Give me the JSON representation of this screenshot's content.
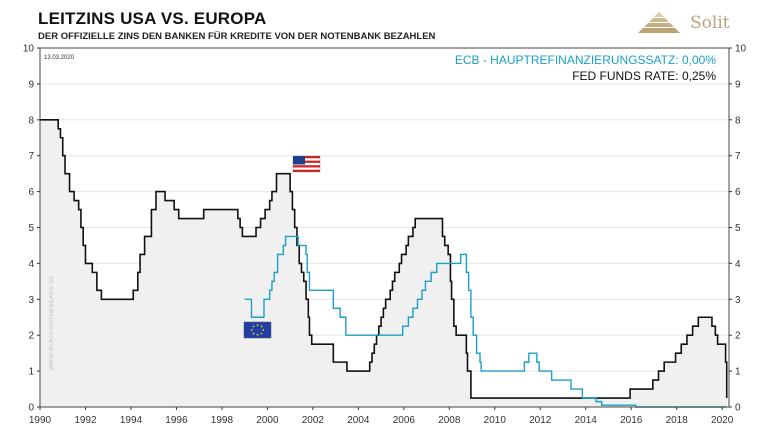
{
  "header": {
    "title": "LEITZINS USA VS. EUROPA",
    "subtitle": "DER OFFIZIELLE ZINS DEN BANKEN FÜR KREDITE VON DER NOTENBANK BEZAHLEN"
  },
  "logo": {
    "text": "Solit",
    "icon": "pyramid-icon",
    "color": "#b8a27a"
  },
  "watermark": "WWW.BLACKONTHEBEARS.DE",
  "colors": {
    "fed": "#111111",
    "ecb": "#1aa0c8",
    "fed_fill": "#f0f0f0",
    "grid": "#e6e6e6"
  },
  "flags": {
    "usa": "us-flag-icon",
    "eu": "eu-flag-icon"
  },
  "chart_data": {
    "type": "line",
    "date_label": "13.03.2020",
    "xlim": [
      1990,
      2020.3
    ],
    "ylim": [
      0,
      10
    ],
    "x_ticks": [
      "1990",
      "1992",
      "1994",
      "1996",
      "1998",
      "2000",
      "2002",
      "2004",
      "2006",
      "2008",
      "2010",
      "2012",
      "2014",
      "2016",
      "2018",
      "2020"
    ],
    "y_ticks": [
      "0",
      "1",
      "2",
      "3",
      "4",
      "5",
      "6",
      "7",
      "8",
      "9",
      "10"
    ],
    "grid": "horizontal",
    "legend_position": "top-right",
    "legend": [
      {
        "label": "ECB - HAUPTREFINANZIERUNGSSATZ: 0,00%",
        "series": "ecb"
      },
      {
        "label": "FED FUNDS RATE: 0,25%",
        "series": "fed"
      }
    ],
    "series": [
      {
        "id": "fed",
        "style": "step",
        "filled": true,
        "points": [
          [
            1990.0,
            8.0
          ],
          [
            1990.8,
            7.75
          ],
          [
            1990.9,
            7.5
          ],
          [
            1991.0,
            7.0
          ],
          [
            1991.1,
            6.5
          ],
          [
            1991.3,
            6.0
          ],
          [
            1991.5,
            5.75
          ],
          [
            1991.7,
            5.5
          ],
          [
            1991.8,
            5.0
          ],
          [
            1991.9,
            4.5
          ],
          [
            1992.0,
            4.0
          ],
          [
            1992.3,
            3.75
          ],
          [
            1992.5,
            3.25
          ],
          [
            1992.7,
            3.0
          ],
          [
            1994.1,
            3.25
          ],
          [
            1994.3,
            3.75
          ],
          [
            1994.4,
            4.25
          ],
          [
            1994.6,
            4.75
          ],
          [
            1994.9,
            5.5
          ],
          [
            1995.1,
            6.0
          ],
          [
            1995.5,
            5.75
          ],
          [
            1995.9,
            5.5
          ],
          [
            1996.1,
            5.25
          ],
          [
            1997.2,
            5.5
          ],
          [
            1998.7,
            5.25
          ],
          [
            1998.8,
            5.0
          ],
          [
            1998.9,
            4.75
          ],
          [
            1999.5,
            5.0
          ],
          [
            1999.7,
            5.25
          ],
          [
            1999.9,
            5.5
          ],
          [
            2000.1,
            5.75
          ],
          [
            2000.2,
            6.0
          ],
          [
            2000.4,
            6.5
          ],
          [
            2001.0,
            6.0
          ],
          [
            2001.1,
            5.5
          ],
          [
            2001.2,
            5.0
          ],
          [
            2001.3,
            4.5
          ],
          [
            2001.4,
            4.0
          ],
          [
            2001.5,
            3.75
          ],
          [
            2001.6,
            3.5
          ],
          [
            2001.7,
            3.0
          ],
          [
            2001.8,
            2.5
          ],
          [
            2001.85,
            2.0
          ],
          [
            2001.95,
            1.75
          ],
          [
            2002.9,
            1.25
          ],
          [
            2003.5,
            1.0
          ],
          [
            2004.5,
            1.25
          ],
          [
            2004.6,
            1.5
          ],
          [
            2004.7,
            1.75
          ],
          [
            2004.8,
            2.0
          ],
          [
            2004.9,
            2.25
          ],
          [
            2005.0,
            2.5
          ],
          [
            2005.1,
            2.75
          ],
          [
            2005.2,
            3.0
          ],
          [
            2005.4,
            3.25
          ],
          [
            2005.5,
            3.5
          ],
          [
            2005.6,
            3.75
          ],
          [
            2005.8,
            4.0
          ],
          [
            2005.9,
            4.25
          ],
          [
            2006.1,
            4.5
          ],
          [
            2006.2,
            4.75
          ],
          [
            2006.4,
            5.0
          ],
          [
            2006.5,
            5.25
          ],
          [
            2007.7,
            4.75
          ],
          [
            2007.8,
            4.5
          ],
          [
            2007.95,
            4.25
          ],
          [
            2008.05,
            3.5
          ],
          [
            2008.1,
            3.0
          ],
          [
            2008.2,
            2.25
          ],
          [
            2008.3,
            2.0
          ],
          [
            2008.75,
            1.5
          ],
          [
            2008.8,
            1.0
          ],
          [
            2008.95,
            0.25
          ],
          [
            2015.95,
            0.5
          ],
          [
            2016.95,
            0.75
          ],
          [
            2017.2,
            1.0
          ],
          [
            2017.45,
            1.25
          ],
          [
            2017.95,
            1.5
          ],
          [
            2018.2,
            1.75
          ],
          [
            2018.45,
            2.0
          ],
          [
            2018.7,
            2.25
          ],
          [
            2018.95,
            2.5
          ],
          [
            2019.55,
            2.25
          ],
          [
            2019.7,
            2.0
          ],
          [
            2019.8,
            1.75
          ],
          [
            2020.15,
            1.25
          ],
          [
            2020.2,
            0.25
          ]
        ]
      },
      {
        "id": "ecb",
        "style": "step",
        "filled": false,
        "points": [
          [
            1999.0,
            3.0
          ],
          [
            1999.3,
            2.5
          ],
          [
            1999.85,
            3.0
          ],
          [
            2000.1,
            3.25
          ],
          [
            2000.2,
            3.5
          ],
          [
            2000.3,
            3.75
          ],
          [
            2000.45,
            4.25
          ],
          [
            2000.7,
            4.5
          ],
          [
            2000.8,
            4.75
          ],
          [
            2001.35,
            4.5
          ],
          [
            2001.7,
            4.25
          ],
          [
            2001.75,
            3.75
          ],
          [
            2001.85,
            3.25
          ],
          [
            2002.9,
            2.75
          ],
          [
            2003.2,
            2.5
          ],
          [
            2003.45,
            2.0
          ],
          [
            2005.95,
            2.25
          ],
          [
            2006.2,
            2.5
          ],
          [
            2006.4,
            2.75
          ],
          [
            2006.6,
            3.0
          ],
          [
            2006.8,
            3.25
          ],
          [
            2006.95,
            3.5
          ],
          [
            2007.2,
            3.75
          ],
          [
            2007.45,
            4.0
          ],
          [
            2008.5,
            4.25
          ],
          [
            2008.75,
            3.75
          ],
          [
            2008.85,
            3.25
          ],
          [
            2008.95,
            2.5
          ],
          [
            2009.05,
            2.0
          ],
          [
            2009.2,
            1.5
          ],
          [
            2009.35,
            1.25
          ],
          [
            2009.4,
            1.0
          ],
          [
            2011.3,
            1.25
          ],
          [
            2011.5,
            1.5
          ],
          [
            2011.85,
            1.25
          ],
          [
            2011.95,
            1.0
          ],
          [
            2012.5,
            0.75
          ],
          [
            2013.35,
            0.5
          ],
          [
            2013.85,
            0.25
          ],
          [
            2014.45,
            0.15
          ],
          [
            2014.7,
            0.05
          ],
          [
            2016.2,
            0.0
          ],
          [
            2020.2,
            0.0
          ]
        ]
      }
    ]
  }
}
